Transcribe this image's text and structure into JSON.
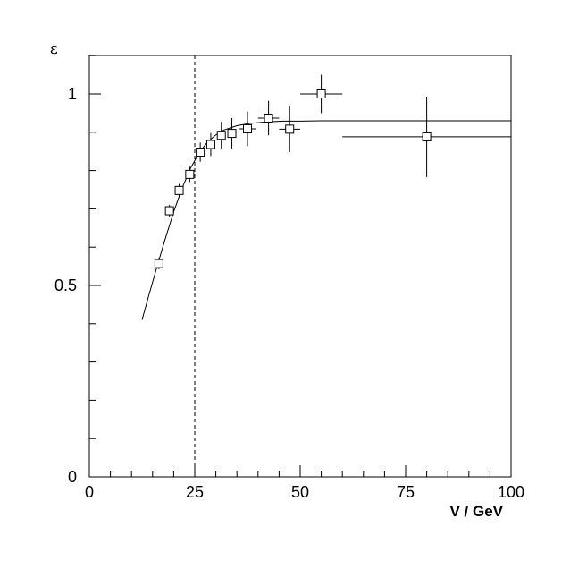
{
  "chart_data": {
    "type": "scatter",
    "title": "",
    "xlabel": "V / GeV",
    "ylabel": "ε",
    "xlim": [
      0,
      100
    ],
    "ylim": [
      0,
      1.1
    ],
    "x_ticks": [
      0,
      25,
      50,
      75,
      100
    ],
    "x_tick_labels": [
      "0",
      "25",
      "50",
      "75",
      "100"
    ],
    "y_ticks": [
      0,
      0.5,
      1
    ],
    "y_tick_labels": [
      "0",
      "0.5",
      "1"
    ],
    "grid": false,
    "legend": "none",
    "threshold_line": {
      "x": 25,
      "style": "dashed"
    },
    "points": [
      {
        "x": 16.5,
        "y": 0.557,
        "xerr": 1.0,
        "yerr": 0.015
      },
      {
        "x": 19.0,
        "y": 0.695,
        "xerr": 1.0,
        "yerr": 0.015
      },
      {
        "x": 21.3,
        "y": 0.748,
        "xerr": 1.0,
        "yerr": 0.017
      },
      {
        "x": 23.8,
        "y": 0.79,
        "xerr": 1.0,
        "yerr": 0.02
      },
      {
        "x": 26.3,
        "y": 0.848,
        "xerr": 1.0,
        "yerr": 0.025
      },
      {
        "x": 28.8,
        "y": 0.868,
        "xerr": 1.0,
        "yerr": 0.03
      },
      {
        "x": 31.3,
        "y": 0.892,
        "xerr": 1.0,
        "yerr": 0.035
      },
      {
        "x": 33.8,
        "y": 0.897,
        "xerr": 1.0,
        "yerr": 0.04
      },
      {
        "x": 37.5,
        "y": 0.909,
        "xerr": 2.0,
        "yerr": 0.045
      },
      {
        "x": 42.5,
        "y": 0.937,
        "xerr": 2.5,
        "yerr": 0.045
      },
      {
        "x": 47.5,
        "y": 0.908,
        "xerr": 2.5,
        "yerr": 0.06
      },
      {
        "x": 55.0,
        "y": 1.0,
        "xerr": 5.0,
        "yerr": 0.05
      },
      {
        "x": 80.0,
        "y": 0.888,
        "xerr": 20.0,
        "yerr": 0.105
      }
    ],
    "fit_curve": {
      "x": [
        12.5,
        14,
        16,
        18,
        20,
        22,
        24,
        26,
        28,
        30,
        32,
        35,
        38,
        42,
        46,
        50,
        55,
        60,
        70,
        80,
        90,
        100
      ],
      "y": [
        0.41,
        0.47,
        0.547,
        0.622,
        0.692,
        0.754,
        0.806,
        0.846,
        0.874,
        0.893,
        0.906,
        0.917,
        0.923,
        0.927,
        0.929,
        0.929,
        0.93,
        0.93,
        0.93,
        0.93,
        0.93,
        0.93
      ]
    }
  }
}
